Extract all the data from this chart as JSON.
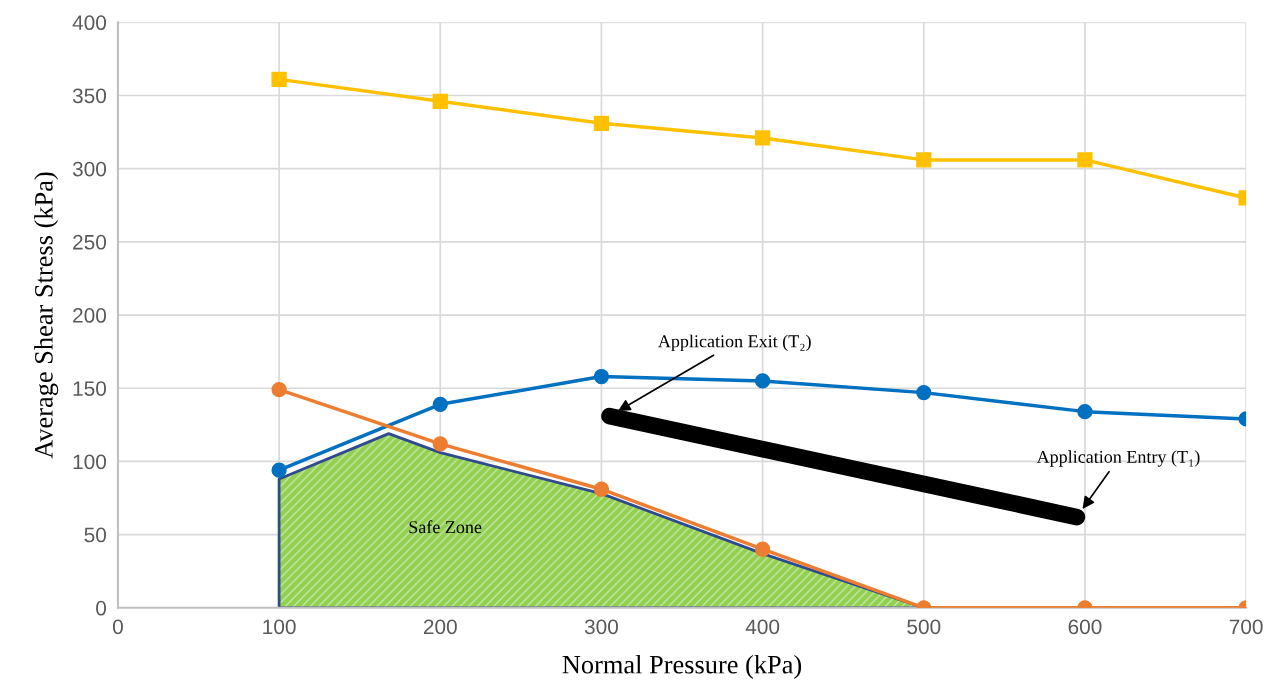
{
  "chart_data": {
    "type": "line",
    "xlabel": "Normal Pressure (kPa)",
    "ylabel": "Average Shear Stress (kPa)",
    "x": [
      100,
      200,
      300,
      400,
      500,
      600,
      700
    ],
    "series": [
      {
        "type": "area",
        "color": "#92d050",
        "x": [
          100,
          168,
          200,
          300,
          400,
          500
        ],
        "values": [
          88,
          119,
          106,
          78,
          37,
          0
        ]
      },
      {
        "color": "#ffc000",
        "values": [
          361,
          346,
          331,
          321,
          306,
          306,
          280
        ],
        "marker": "square"
      },
      {
        "color": "#0070c0",
        "values": [
          94,
          139,
          158,
          155,
          147,
          134,
          129
        ],
        "marker": "circle"
      },
      {
        "color": "#ed7d31",
        "values": [
          149,
          112,
          81,
          40,
          0,
          0,
          0
        ],
        "marker": "circle"
      },
      {
        "color": "#000000",
        "x": [
          305,
          595
        ],
        "values": [
          131,
          62
        ],
        "marker": "none"
      }
    ],
    "annotations": [
      "Safe Zone",
      "Application Exit (T₂)",
      {
        "text": "Application Entry (T₁)",
        "x": 595,
        "y": 62
      }
    ],
    "xlim": [
      0,
      700
    ],
    "xticks": [
      0,
      100,
      200,
      300,
      400,
      500,
      600,
      700
    ],
    "ylim": [
      0,
      400
    ],
    "yticks": [
      0,
      50,
      100,
      150,
      200,
      250,
      300,
      350,
      400
    ],
    "grid": true,
    "line_style": "solid"
  }
}
